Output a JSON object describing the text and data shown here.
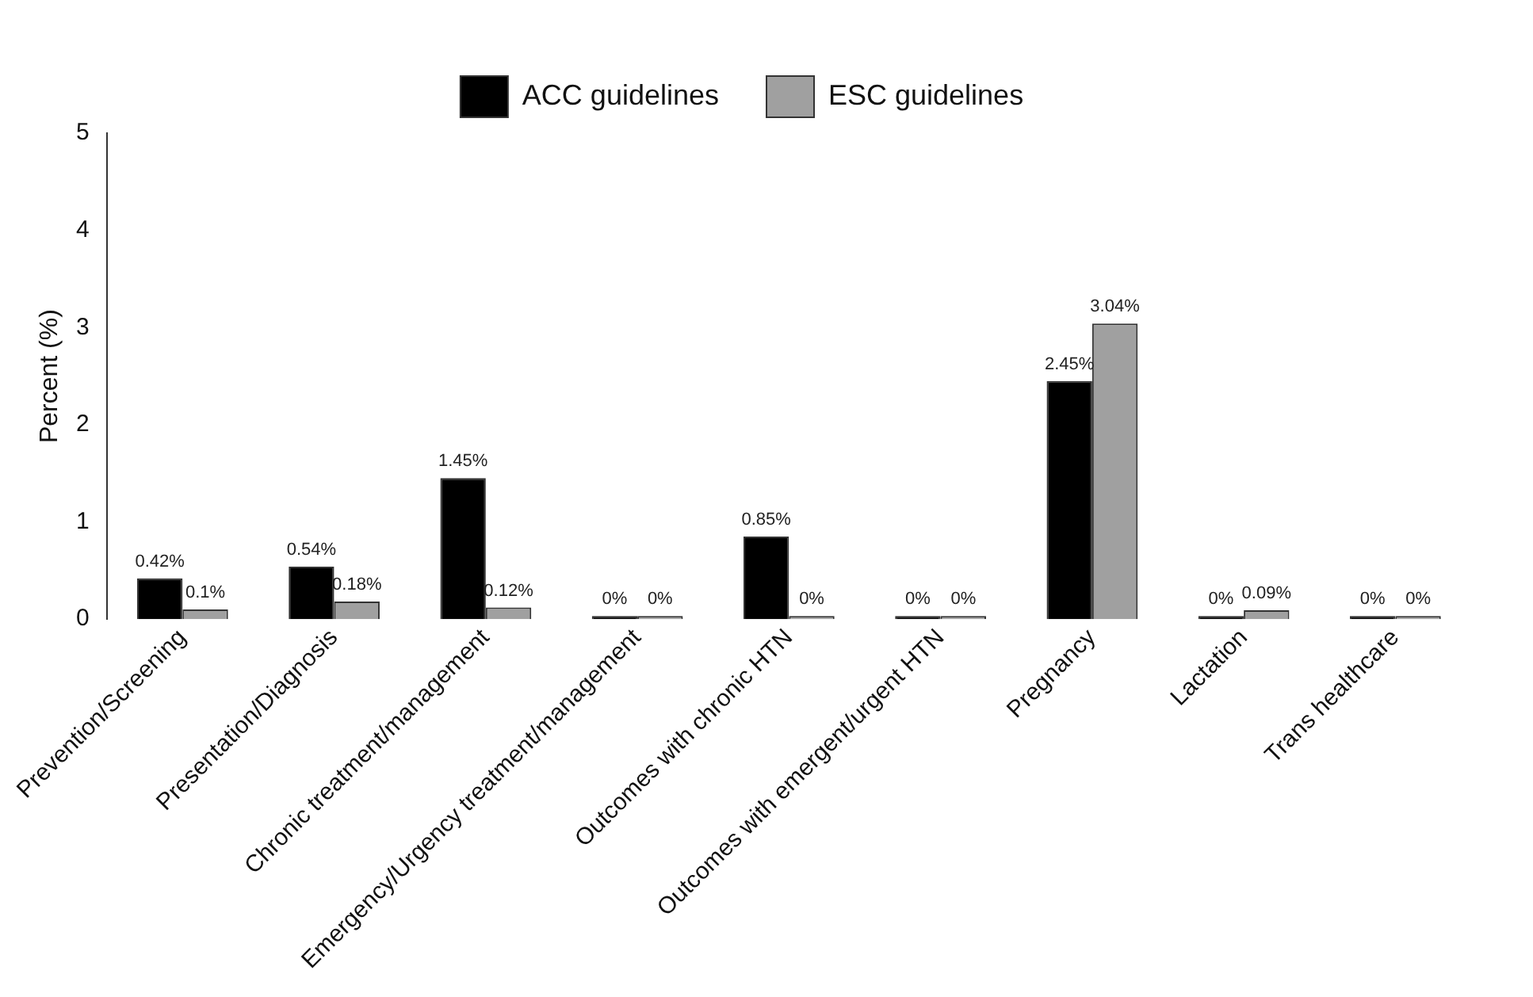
{
  "chart_data": {
    "type": "bar",
    "ylabel": "Percent (%)",
    "categories": [
      "Prevention/Screening",
      "Presentation/Diagnosis",
      "Chronic treatment/management",
      "Emergency/Urgency treatment/management",
      "Outcomes with chronic HTN",
      "Outcomes with emergent/urgent HTN",
      "Pregnancy",
      "Lactation",
      "Trans healthcare"
    ],
    "series": [
      {
        "name": "ACC guidelines",
        "color": "#000000",
        "values": [
          0.42,
          0.54,
          1.45,
          0,
          0.85,
          0,
          2.45,
          0,
          0
        ],
        "value_labels": [
          "0.42%",
          "0.54%",
          "1.45%",
          "0%",
          "0.85%",
          "0%",
          "2.45%",
          "0%",
          "0%"
        ]
      },
      {
        "name": "ESC guidelines",
        "color": "#a0a0a0",
        "values": [
          0.1,
          0.18,
          0.12,
          0,
          0,
          0,
          3.04,
          0.09,
          0
        ],
        "value_labels": [
          "0.1%",
          "0.18%",
          "0.12%",
          "0%",
          "0%",
          "0%",
          "3.04%",
          "0.09%",
          "0%"
        ]
      }
    ],
    "ylim": [
      0,
      5
    ],
    "yticks": [
      0,
      1,
      2,
      3,
      4,
      5
    ],
    "grid": false,
    "legend": "top"
  }
}
